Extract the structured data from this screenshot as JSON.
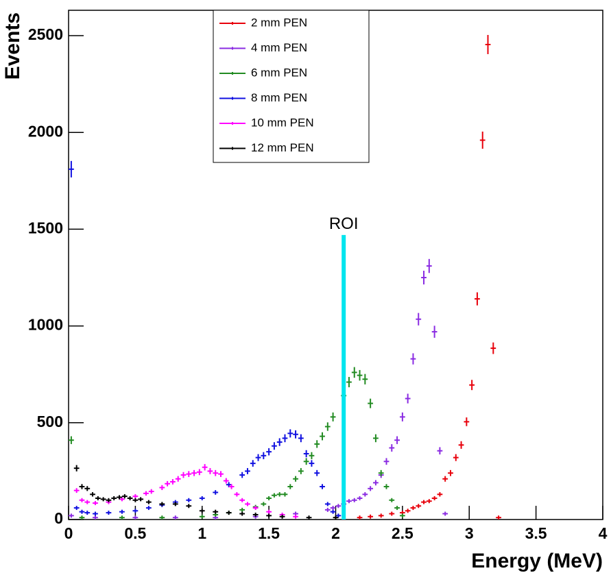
{
  "chart_data": {
    "type": "scatter",
    "xlabel": "Energy (MeV)",
    "ylabel": "Events",
    "xlim": [
      0,
      4
    ],
    "ylim": [
      0,
      2631
    ],
    "xticks": [
      0,
      0.5,
      1,
      1.5,
      2,
      2.5,
      3,
      3.5,
      4
    ],
    "yticks": [
      0,
      500,
      1000,
      1500,
      2000,
      2500
    ],
    "legend": "top-center",
    "roi": {
      "label": "ROI",
      "x": 2.06,
      "top": 1470,
      "color": "#00e5ee"
    },
    "series": [
      {
        "name": "2 mm PEN",
        "color": "#e8000b",
        "x": [
          2.18,
          2.26,
          2.34,
          2.42,
          2.5,
          2.54,
          2.58,
          2.62,
          2.66,
          2.7,
          2.74,
          2.78,
          2.82,
          2.86,
          2.9,
          2.94,
          2.98,
          3.02,
          3.06,
          3.1,
          3.14,
          3.18,
          3.22
        ],
        "values": [
          10,
          15,
          20,
          30,
          35,
          45,
          60,
          70,
          90,
          95,
          110,
          130,
          210,
          240,
          320,
          385,
          505,
          695,
          1140,
          1960,
          2454,
          885,
          10
        ]
      },
      {
        "name": "4 mm PEN",
        "color": "#8a2be2",
        "x": [
          0.02,
          0.2,
          0.5,
          0.8,
          1.1,
          1.4,
          1.7,
          1.94,
          1.98,
          2.02,
          2.06,
          2.1,
          2.14,
          2.18,
          2.22,
          2.26,
          2.3,
          2.34,
          2.38,
          2.42,
          2.46,
          2.5,
          2.54,
          2.58,
          2.62,
          2.66,
          2.7,
          2.74,
          2.78,
          2.82
        ],
        "values": [
          20,
          10,
          10,
          10,
          10,
          15,
          30,
          50,
          60,
          70,
          80,
          95,
          100,
          110,
          130,
          160,
          190,
          230,
          300,
          370,
          410,
          530,
          625,
          830,
          1035,
          1250,
          1310,
          970,
          355,
          30
        ]
      },
      {
        "name": "6 mm PEN",
        "color": "#228b22",
        "x": [
          0.02,
          0.1,
          0.4,
          0.7,
          1.0,
          1.1,
          1.2,
          1.3,
          1.4,
          1.46,
          1.5,
          1.54,
          1.58,
          1.62,
          1.66,
          1.7,
          1.74,
          1.78,
          1.82,
          1.86,
          1.9,
          1.94,
          1.98,
          2.06,
          2.1,
          2.14,
          2.18,
          2.22,
          2.26,
          2.3,
          2.34,
          2.38,
          2.42,
          2.46,
          2.5
        ],
        "values": [
          410,
          10,
          10,
          10,
          15,
          25,
          35,
          50,
          65,
          80,
          110,
          125,
          130,
          130,
          170,
          210,
          250,
          300,
          330,
          390,
          430,
          480,
          530,
          640,
          710,
          760,
          745,
          725,
          600,
          420,
          240,
          170,
          100,
          60,
          20
        ]
      },
      {
        "name": "8 mm PEN",
        "color": "#1010e0",
        "x": [
          0.02,
          0.06,
          0.1,
          0.14,
          0.2,
          0.3,
          0.4,
          0.5,
          0.6,
          0.7,
          0.8,
          0.9,
          1.0,
          1.1,
          1.2,
          1.3,
          1.34,
          1.38,
          1.42,
          1.46,
          1.5,
          1.54,
          1.58,
          1.62,
          1.66,
          1.7,
          1.74,
          1.78,
          1.82,
          1.86,
          1.9,
          1.94,
          1.98,
          2.02
        ],
        "values": [
          1810,
          60,
          40,
          35,
          30,
          35,
          40,
          45,
          60,
          75,
          90,
          100,
          110,
          140,
          180,
          230,
          250,
          290,
          320,
          330,
          350,
          380,
          400,
          420,
          445,
          440,
          420,
          340,
          290,
          240,
          170,
          80,
          40,
          20
        ]
      },
      {
        "name": "10 mm PEN",
        "color": "#ff00ff",
        "x": [
          0.06,
          0.1,
          0.14,
          0.2,
          0.3,
          0.4,
          0.5,
          0.58,
          0.62,
          0.7,
          0.74,
          0.78,
          0.82,
          0.86,
          0.9,
          0.94,
          0.98,
          1.02,
          1.06,
          1.1,
          1.14,
          1.18,
          1.22,
          1.26,
          1.3,
          1.34,
          1.4,
          1.5,
          1.6,
          1.7
        ],
        "values": [
          150,
          100,
          90,
          85,
          90,
          105,
          120,
          135,
          145,
          165,
          185,
          195,
          210,
          230,
          235,
          240,
          245,
          270,
          250,
          240,
          235,
          200,
          170,
          130,
          100,
          80,
          60,
          40,
          25,
          15
        ]
      },
      {
        "name": "12 mm PEN",
        "color": "#000000",
        "x": [
          0.06,
          0.1,
          0.14,
          0.18,
          0.22,
          0.26,
          0.3,
          0.34,
          0.38,
          0.42,
          0.46,
          0.5,
          0.54,
          0.6,
          0.7,
          0.8,
          0.9,
          1.0,
          1.1,
          1.2,
          1.3,
          1.4,
          1.5,
          1.6,
          1.8,
          2.0
        ],
        "values": [
          265,
          170,
          160,
          130,
          110,
          105,
          100,
          110,
          115,
          120,
          110,
          100,
          105,
          90,
          80,
          80,
          70,
          45,
          40,
          35,
          30,
          25,
          20,
          15,
          10,
          10
        ]
      }
    ]
  }
}
